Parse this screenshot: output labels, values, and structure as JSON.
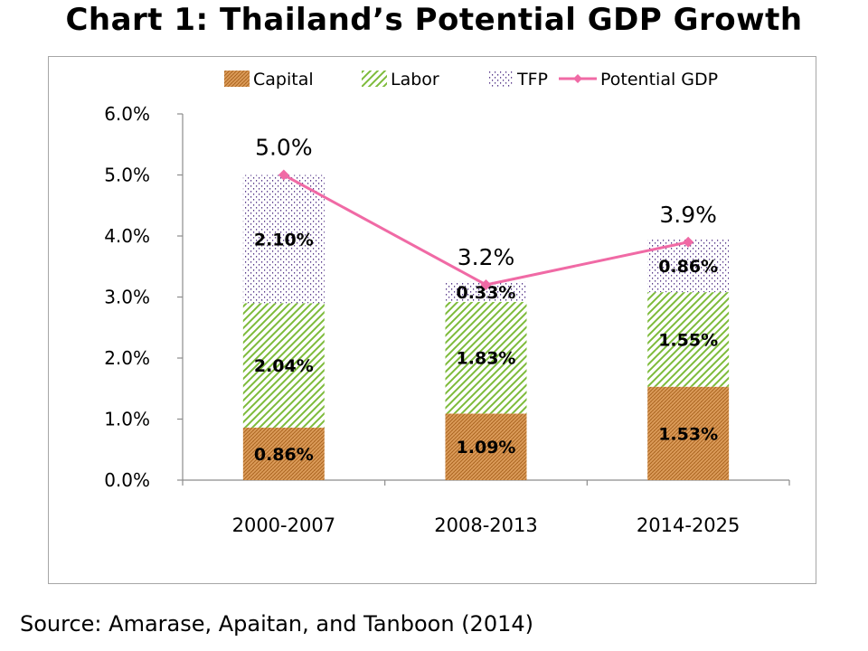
{
  "title": "Chart 1: Thailand’s Potential GDP Growth",
  "source": "Source:  Amarase, Apaitan, and Tanboon (2014)",
  "colors": {
    "capital": "#c07a2c",
    "labor": "#7dbb3a",
    "tfp": "#5b3c8c",
    "line": "#f06aa5",
    "axis": "#8c8c8c"
  },
  "chart_data": {
    "type": "bar",
    "stacked": true,
    "title": "Chart 1: Thailand’s Potential GDP Growth",
    "categories": [
      "2000-2007",
      "2008-2013",
      "2014-2025"
    ],
    "series": [
      {
        "name": "Capital",
        "values": [
          0.86,
          1.09,
          1.53
        ],
        "labels": [
          "0.86%",
          "1.09%",
          "1.53%"
        ]
      },
      {
        "name": "Labor",
        "values": [
          2.04,
          1.83,
          1.55
        ],
        "labels": [
          "2.04%",
          "1.83%",
          "1.55%"
        ]
      },
      {
        "name": "TFP",
        "values": [
          2.1,
          0.33,
          0.86
        ],
        "labels": [
          "2.10%",
          "0.33%",
          "0.86%"
        ]
      }
    ],
    "line_series": {
      "name": "Potential GDP",
      "values": [
        5.0,
        3.2,
        3.9
      ],
      "labels": [
        "5.0%",
        "3.2%",
        "3.9%"
      ]
    },
    "ylim": [
      0,
      6
    ],
    "yticks": [
      "0.0%",
      "1.0%",
      "2.0%",
      "3.0%",
      "4.0%",
      "5.0%",
      "6.0%"
    ],
    "legend": [
      "Capital",
      "Labor",
      "TFP",
      "Potential GDP"
    ],
    "legend_position": "top",
    "grid": false
  }
}
